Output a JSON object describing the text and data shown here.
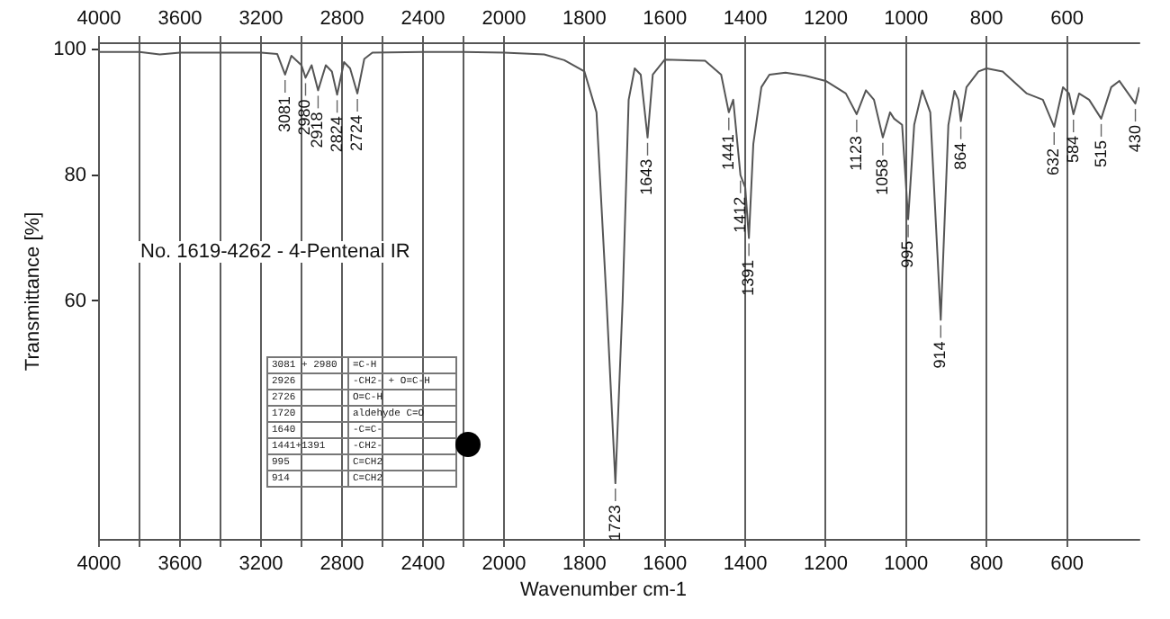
{
  "chart_data": [
    {
      "type": "line",
      "xlabel": "Wavenumber cm-1",
      "ylabel": "Transmittance [%]",
      "x": [
        4000,
        3800,
        3700,
        3600,
        3400,
        3200,
        3120,
        3081,
        3050,
        3000,
        2980,
        2950,
        2918,
        2880,
        2850,
        2824,
        2790,
        2760,
        2724,
        2690,
        2650,
        2400,
        2200,
        2000
      ],
      "series": [
        {
          "color": "#555555",
          "values": [
            99.6,
            99.6,
            99.2,
            99.5,
            99.5,
            99.5,
            99.3,
            96,
            99,
            97.5,
            95.5,
            97.5,
            93.5,
            97.5,
            96.5,
            92.8,
            98,
            97,
            93,
            98.5,
            99.5,
            99.6,
            99.6,
            99.5
          ]
        }
      ],
      "xlim": [
        4000,
        2000
      ],
      "x2lim": [
        4000,
        2000
      ],
      "xticks": [
        4000,
        {
          "value": 3800,
          "label": null
        },
        3600,
        {
          "value": 3400,
          "label": null
        },
        3200,
        {
          "value": 3000,
          "label": null
        },
        2800,
        {
          "value": 2600,
          "label": null
        },
        2400,
        {
          "value": 2200,
          "label": null
        },
        2000
      ],
      "x2ticks": [
        4000,
        {
          "value": 3800,
          "label": null
        },
        3600,
        {
          "value": 3400,
          "label": null
        },
        3200,
        {
          "value": 3000,
          "label": null
        },
        2800,
        {
          "value": 2600,
          "label": null
        },
        2400,
        {
          "value": 2200,
          "label": null
        },
        2000
      ],
      "ylim": [
        22,
        101
      ],
      "yticks": [
        60,
        80,
        100
      ],
      "grid": "x",
      "legend": false,
      "marker": "none",
      "line_style": "solid",
      "annotations": [
        "No. 1619-4262 - 4-Pentenal IR",
        "3081 + 2980",
        "=C-H",
        "2926",
        "-CH2- + O=C-H",
        "2726",
        "O=C-H",
        "1720",
        "aldehyde C=O",
        "1640",
        "-C=C-",
        "1441+1391",
        "-CH2-",
        "995",
        "C=CH2",
        "914",
        "C=CH2",
        {
          "text": "3081",
          "x": 3081,
          "y": 96
        },
        {
          "text": "2980",
          "x": 2980,
          "y": 95.5
        },
        {
          "text": "2918",
          "x": 2918,
          "y": 93.5
        },
        {
          "text": "2824",
          "x": 2824,
          "y": 92.8
        },
        {
          "text": "2724",
          "x": 2724,
          "y": 93
        }
      ]
    },
    {
      "type": "line",
      "tick_labels": "x",
      "x": [
        2000,
        1900,
        1850,
        1800,
        1770,
        1745,
        1723,
        1705,
        1690,
        1675,
        1660,
        1643,
        1630,
        1600,
        1500,
        1460,
        1441,
        1430,
        1412,
        1400,
        1391,
        1380,
        1360,
        1340,
        1300,
        1250,
        1200,
        1150,
        1123,
        1100,
        1080,
        1058,
        1040,
        1030,
        1010,
        995,
        980,
        960,
        940,
        914,
        895,
        880,
        870,
        864,
        850,
        820,
        800,
        760,
        700,
        660,
        632,
        610,
        595,
        584,
        570,
        545,
        515,
        490,
        470,
        430,
        420
      ],
      "series": [
        {
          "color": "#555555",
          "values": [
            99.5,
            99.2,
            98.3,
            96.5,
            90,
            60,
            31,
            60,
            92,
            97,
            96,
            86,
            96,
            98.4,
            98.2,
            96,
            90,
            92,
            80,
            78,
            70,
            85,
            94,
            96,
            96.3,
            95.8,
            95,
            93,
            89.7,
            93.5,
            92,
            86,
            90,
            89,
            88,
            73,
            88,
            93.5,
            90,
            57,
            88,
            93.4,
            92,
            88.6,
            94,
            96.5,
            97,
            96.5,
            93,
            92,
            87.7,
            94,
            93,
            89.7,
            93,
            92,
            89,
            94,
            95,
            91.4,
            94
          ]
        }
      ],
      "xlim": [
        2000,
        420
      ],
      "x2lim": [
        2000,
        420
      ],
      "xticks": [
        1800,
        1600,
        1400,
        1200,
        1000,
        800,
        600
      ],
      "x2ticks": [
        1800,
        1600,
        1400,
        1200,
        1000,
        800,
        600
      ],
      "ylim": [
        22,
        101
      ],
      "grid": "x",
      "legend": false,
      "marker": "none",
      "line_style": "solid",
      "annotations": [
        {
          "text": "1723",
          "x": 1723,
          "y": 31
        },
        {
          "text": "1643",
          "x": 1643,
          "y": 86
        },
        {
          "text": "1441",
          "x": 1441,
          "y": 90
        },
        {
          "text": "1412",
          "x": 1412,
          "y": 80
        },
        {
          "text": "1391",
          "x": 1391,
          "y": 70
        },
        {
          "text": "1123",
          "x": 1123,
          "y": 89.7
        },
        {
          "text": "1058",
          "x": 1058,
          "y": 86
        },
        {
          "text": "995",
          "x": 995,
          "y": 73
        },
        {
          "text": "914",
          "x": 914,
          "y": 57
        },
        {
          "text": "864",
          "x": 864,
          "y": 88.6
        },
        {
          "text": "632",
          "x": 632,
          "y": 87.7
        },
        {
          "text": "584",
          "x": 584,
          "y": 89.7
        },
        {
          "text": "515",
          "x": 515,
          "y": 89
        },
        {
          "text": "430",
          "x": 430,
          "y": 91.4
        }
      ]
    }
  ]
}
